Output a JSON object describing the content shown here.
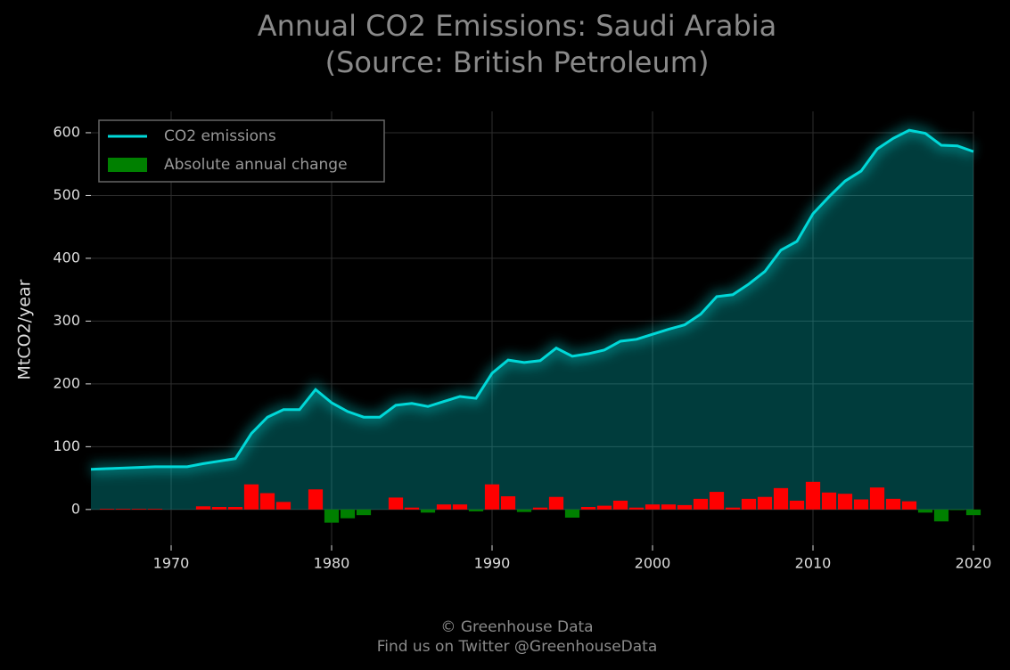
{
  "chart_data": {
    "type": "line-bar",
    "title": "Annual CO2 Emissions: Saudi Arabia",
    "subtitle": "(Source: British Petroleum)",
    "y_label": "MtCO2/year",
    "footer": [
      "© Greenhouse Data",
      "Find us on Twitter @GreenhouseData"
    ],
    "x": [
      1965,
      1966,
      1967,
      1968,
      1969,
      1970,
      1971,
      1972,
      1973,
      1974,
      1975,
      1976,
      1977,
      1978,
      1979,
      1980,
      1981,
      1982,
      1983,
      1984,
      1985,
      1986,
      1987,
      1988,
      1989,
      1990,
      1991,
      1992,
      1993,
      1994,
      1995,
      1996,
      1997,
      1998,
      1999,
      2000,
      2001,
      2002,
      2003,
      2004,
      2005,
      2006,
      2007,
      2008,
      2009,
      2010,
      2011,
      2012,
      2013,
      2014,
      2015,
      2016,
      2017,
      2018,
      2019,
      2020
    ],
    "series": [
      {
        "name": "CO2 emissions",
        "type": "line",
        "color": "#00d8d8",
        "values": [
          64,
          65,
          66,
          67,
          68,
          68,
          68,
          73,
          77,
          81,
          121,
          147,
          159,
          159,
          191,
          170,
          156,
          147,
          147,
          166,
          169,
          164,
          172,
          180,
          177,
          217,
          238,
          234,
          237,
          257,
          244,
          248,
          254,
          268,
          271,
          279,
          287,
          294,
          311,
          339,
          342,
          359,
          379,
          413,
          427,
          471,
          498,
          523,
          539,
          574,
          591,
          604,
          599,
          580,
          579,
          570
        ]
      },
      {
        "name": "Absolute annual change",
        "type": "bar",
        "color": "#008000",
        "positive_color": "#ff0000",
        "values": [
          null,
          1,
          1,
          1,
          1,
          0,
          0,
          5,
          4,
          4,
          40,
          26,
          12,
          0,
          32,
          -21,
          -14,
          -9,
          0,
          19,
          3,
          -5,
          8,
          8,
          -3,
          40,
          21,
          -4,
          3,
          20,
          -13,
          4,
          6,
          14,
          3,
          8,
          8,
          7,
          17,
          28,
          3,
          17,
          20,
          34,
          14,
          44,
          27,
          25,
          16,
          35,
          17,
          13,
          -5,
          -19,
          -1,
          -9
        ]
      }
    ],
    "xlim": [
      1965,
      2020
    ],
    "xticks": [
      1970,
      1980,
      1990,
      2000,
      2010,
      2020
    ],
    "ylim": [
      -57,
      634
    ],
    "yticks": [
      0,
      100,
      200,
      300,
      400,
      500,
      600
    ],
    "grid": true,
    "legend": "upper-left"
  }
}
